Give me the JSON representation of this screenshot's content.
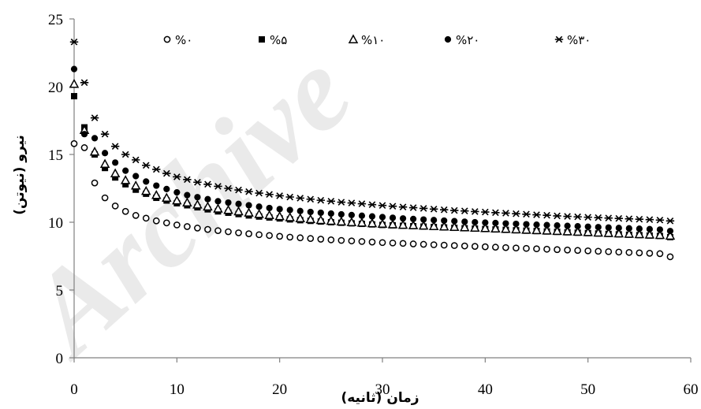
{
  "watermark": "Archive",
  "chart_data": {
    "type": "scatter",
    "xlabel": "زمان (ثانیه)",
    "ylabel": "نیرو (نیوتن)",
    "xlim": [
      0,
      60
    ],
    "ylim": [
      0,
      25
    ],
    "xticks": [
      "0",
      "10",
      "20",
      "30",
      "40",
      "50",
      "60"
    ],
    "yticks": [
      "0",
      "5",
      "10",
      "15",
      "20",
      "25"
    ],
    "grid": false,
    "legend_position": "top",
    "x": [
      0,
      1,
      2,
      3,
      4,
      5,
      6,
      7,
      8,
      9,
      10,
      11,
      12,
      13,
      14,
      15,
      16,
      17,
      18,
      19,
      20,
      21,
      22,
      23,
      24,
      25,
      26,
      27,
      28,
      29,
      30,
      31,
      32,
      33,
      34,
      35,
      36,
      37,
      38,
      39,
      40,
      41,
      42,
      43,
      44,
      45,
      46,
      47,
      48,
      49,
      50,
      51,
      52,
      53,
      54,
      55,
      56,
      57,
      58
    ],
    "series": [
      {
        "name": "%۰",
        "marker": "open-circle",
        "values": [
          15.8,
          15.5,
          12.9,
          11.8,
          11.2,
          10.8,
          10.5,
          10.3,
          10.1,
          9.95,
          9.8,
          9.68,
          9.57,
          9.47,
          9.38,
          9.3,
          9.22,
          9.15,
          9.08,
          9.02,
          8.96,
          8.9,
          8.85,
          8.8,
          8.75,
          8.7,
          8.66,
          8.62,
          8.58,
          8.54,
          8.5,
          8.47,
          8.44,
          8.4,
          8.37,
          8.34,
          8.31,
          8.28,
          8.25,
          8.22,
          8.19,
          8.16,
          8.13,
          8.1,
          8.07,
          8.04,
          8.01,
          7.98,
          7.95,
          7.92,
          7.89,
          7.86,
          7.83,
          7.8,
          7.77,
          7.74,
          7.71,
          7.68,
          7.45
        ]
      },
      {
        "name": "%۵",
        "marker": "filled-square",
        "values": [
          19.3,
          17.0,
          15.0,
          14.0,
          13.3,
          12.8,
          12.4,
          12.1,
          11.8,
          11.6,
          11.4,
          11.25,
          11.1,
          10.95,
          10.8,
          10.7,
          10.6,
          10.5,
          10.42,
          10.35,
          10.28,
          10.21,
          10.15,
          10.1,
          10.05,
          10.0,
          9.96,
          9.92,
          9.88,
          9.84,
          9.8,
          9.77,
          9.74,
          9.71,
          9.68,
          9.65,
          9.62,
          9.59,
          9.56,
          9.53,
          9.5,
          9.47,
          9.44,
          9.41,
          9.38,
          9.35,
          9.32,
          9.29,
          9.26,
          9.23,
          9.2,
          9.17,
          9.14,
          9.11,
          9.08,
          9.05,
          9.02,
          8.99,
          8.9
        ]
      },
      {
        "name": "%۱۰",
        "marker": "open-triangle",
        "values": [
          20.2,
          16.8,
          15.2,
          14.3,
          13.6,
          13.1,
          12.7,
          12.3,
          12.0,
          11.8,
          11.6,
          11.45,
          11.3,
          11.15,
          11.0,
          10.9,
          10.8,
          10.7,
          10.6,
          10.52,
          10.44,
          10.36,
          10.29,
          10.22,
          10.16,
          10.1,
          10.05,
          10.0,
          9.96,
          9.92,
          9.88,
          9.84,
          9.8,
          9.77,
          9.74,
          9.71,
          9.68,
          9.65,
          9.62,
          9.59,
          9.56,
          9.53,
          9.5,
          9.47,
          9.44,
          9.41,
          9.38,
          9.35,
          9.32,
          9.29,
          9.26,
          9.23,
          9.2,
          9.17,
          9.14,
          9.11,
          9.08,
          9.05,
          9.0
        ]
      },
      {
        "name": "%۲۰",
        "marker": "filled-circle",
        "values": [
          21.3,
          16.5,
          16.2,
          15.1,
          14.4,
          13.8,
          13.4,
          13.0,
          12.7,
          12.45,
          12.2,
          12.0,
          11.85,
          11.7,
          11.55,
          11.45,
          11.35,
          11.25,
          11.15,
          11.05,
          10.97,
          10.9,
          10.83,
          10.76,
          10.7,
          10.64,
          10.58,
          10.53,
          10.48,
          10.43,
          10.38,
          10.33,
          10.28,
          10.24,
          10.2,
          10.16,
          10.12,
          10.08,
          10.04,
          10.0,
          9.97,
          9.94,
          9.91,
          9.88,
          9.85,
          9.82,
          9.79,
          9.76,
          9.73,
          9.7,
          9.67,
          9.64,
          9.61,
          9.58,
          9.55,
          9.52,
          9.49,
          9.46,
          9.35
        ]
      },
      {
        "name": "%۳۰",
        "marker": "star",
        "values": [
          23.3,
          20.3,
          17.7,
          16.5,
          15.6,
          15.0,
          14.6,
          14.2,
          13.9,
          13.6,
          13.35,
          13.15,
          12.95,
          12.8,
          12.65,
          12.5,
          12.38,
          12.26,
          12.15,
          12.05,
          11.95,
          11.86,
          11.78,
          11.7,
          11.62,
          11.55,
          11.48,
          11.42,
          11.36,
          11.3,
          11.24,
          11.18,
          11.12,
          11.07,
          11.02,
          10.97,
          10.92,
          10.87,
          10.83,
          10.79,
          10.75,
          10.71,
          10.67,
          10.63,
          10.59,
          10.55,
          10.51,
          10.47,
          10.43,
          10.4,
          10.37,
          10.34,
          10.31,
          10.28,
          10.25,
          10.22,
          10.19,
          10.16,
          10.1
        ]
      }
    ]
  }
}
